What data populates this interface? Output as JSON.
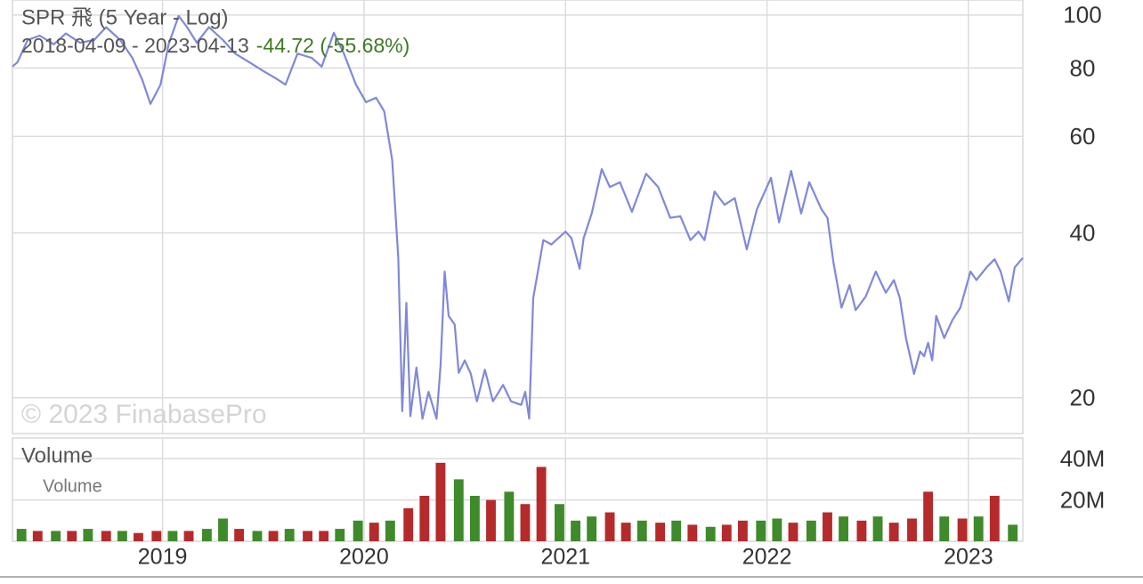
{
  "chart_data": [
    {
      "type": "line",
      "title": "SPR 飛 (5 Year - Log)",
      "subtitle": "2018-04-09 - 2023-04-13",
      "change": "-44.72 (-55.68%)",
      "watermark": "© 2023 FinabasePro",
      "log_scale": true,
      "grid": true,
      "xlim": [
        2018.255,
        2023.27
      ],
      "ylim": [
        17.2,
        106.5
      ],
      "yticks": [
        20,
        40,
        60,
        80,
        100
      ],
      "x": [
        2018.255,
        2018.28,
        2018.33,
        2018.39,
        2018.46,
        2018.52,
        2018.59,
        2018.66,
        2018.72,
        2018.79,
        2018.85,
        2018.9,
        2018.94,
        2018.99,
        2019.03,
        2019.08,
        2019.12,
        2019.17,
        2019.23,
        2019.3,
        2019.36,
        2019.43,
        2019.5,
        2019.56,
        2019.61,
        2019.67,
        2019.74,
        2019.79,
        2019.85,
        2019.9,
        2019.96,
        2020.01,
        2020.06,
        2020.1,
        2020.14,
        2020.17,
        2020.19,
        2020.21,
        2020.23,
        2020.26,
        2020.29,
        2020.32,
        2020.36,
        2020.38,
        2020.4,
        2020.42,
        2020.45,
        2020.47,
        2020.5,
        2020.53,
        2020.56,
        2020.6,
        2020.64,
        2020.69,
        2020.73,
        2020.78,
        2020.8,
        2020.82,
        2020.84,
        2020.89,
        2020.93,
        2021.0,
        2021.03,
        2021.07,
        2021.09,
        2021.13,
        2021.18,
        2021.22,
        2021.27,
        2021.33,
        2021.4,
        2021.46,
        2021.52,
        2021.57,
        2021.62,
        2021.66,
        2021.69,
        2021.74,
        2021.79,
        2021.84,
        2021.9,
        2021.95,
        2022.02,
        2022.06,
        2022.12,
        2022.17,
        2022.21,
        2022.27,
        2022.3,
        2022.33,
        2022.37,
        2022.41,
        2022.44,
        2022.49,
        2022.54,
        2022.59,
        2022.63,
        2022.66,
        2022.69,
        2022.73,
        2022.76,
        2022.78,
        2022.8,
        2022.82,
        2022.84,
        2022.88,
        2022.92,
        2022.96,
        2023.01,
        2023.04,
        2023.09,
        2023.13,
        2023.16,
        2023.2,
        2023.23,
        2023.27
      ],
      "series": [
        {
          "color": "#8088d8",
          "values": [
            80.5,
            82,
            90,
            91.7,
            88.4,
            92.5,
            89,
            90,
            95,
            90,
            83.5,
            76,
            68.8,
            74.6,
            88.4,
            99.6,
            95.2,
            89,
            95,
            90,
            85,
            82,
            79,
            76.7,
            74.6,
            85,
            83.5,
            80.5,
            92.8,
            85,
            74.6,
            69.3,
            70.6,
            66.7,
            54.3,
            36,
            18.9,
            29.8,
            18.5,
            22.7,
            18.3,
            20.5,
            18.3,
            22.9,
            34,
            28.2,
            27.2,
            22.2,
            23.4,
            22.1,
            19.7,
            22.5,
            19.7,
            21.1,
            19.7,
            19.4,
            20.5,
            18.3,
            30.4,
            38.8,
            38.1,
            40.2,
            39.1,
            34.4,
            39.1,
            43.4,
            52.3,
            48.5,
            49.5,
            43.7,
            51.3,
            48.5,
            42.6,
            42.9,
            38.8,
            40.2,
            38.8,
            47.6,
            45,
            46.3,
            37.3,
            44.2,
            50.4,
            41.8,
            51.9,
            43.4,
            49.5,
            44.2,
            42.6,
            35.3,
            29.2,
            32.1,
            28.9,
            30.6,
            34,
            31.1,
            32.8,
            30.4,
            25.7,
            22.1,
            24.3,
            23.8,
            25.2,
            23.4,
            28.2,
            25.7,
            27.7,
            29.2,
            34,
            32.8,
            34.6,
            35.8,
            34,
            30,
            34.6,
            36
          ]
        }
      ]
    },
    {
      "type": "bar",
      "title": "Volume",
      "grid": true,
      "xlim": [
        2018.255,
        2023.27
      ],
      "ylim": [
        0,
        50000000
      ],
      "xticks": [
        2019,
        2020,
        2021,
        2022,
        2023
      ],
      "yticks": [
        {
          "value": 20000000,
          "label": "20M"
        },
        {
          "value": 40000000,
          "label": "40M"
        }
      ],
      "x": [
        2018.3,
        2018.38,
        2018.47,
        2018.55,
        2018.63,
        2018.72,
        2018.8,
        2018.88,
        2018.97,
        2019.05,
        2019.13,
        2019.22,
        2019.3,
        2019.38,
        2019.47,
        2019.55,
        2019.63,
        2019.72,
        2019.8,
        2019.88,
        2019.97,
        2020.05,
        2020.13,
        2020.22,
        2020.3,
        2020.38,
        2020.47,
        2020.55,
        2020.63,
        2020.72,
        2020.8,
        2020.88,
        2020.97,
        2021.05,
        2021.13,
        2021.22,
        2021.3,
        2021.38,
        2021.47,
        2021.55,
        2021.63,
        2021.72,
        2021.8,
        2021.88,
        2021.97,
        2022.05,
        2022.13,
        2022.22,
        2022.3,
        2022.38,
        2022.47,
        2022.55,
        2022.63,
        2022.72,
        2022.8,
        2022.88,
        2022.97,
        2023.05,
        2023.13,
        2023.22
      ],
      "series": [
        {
          "name": "Volume",
          "values": [
            6000000,
            5000000,
            5000000,
            5000000,
            6000000,
            5000000,
            5000000,
            4000000,
            5000000,
            5000000,
            5000000,
            6000000,
            11000000,
            6000000,
            5000000,
            5000000,
            6000000,
            5000000,
            5000000,
            6000000,
            10000000,
            9000000,
            10000000,
            16000000,
            22000000,
            38000000,
            30000000,
            22000000,
            20000000,
            24000000,
            18000000,
            36000000,
            18000000,
            10000000,
            12000000,
            14000000,
            9000000,
            10000000,
            9000000,
            10000000,
            8000000,
            7000000,
            8000000,
            10000000,
            10000000,
            11000000,
            9000000,
            10000000,
            14000000,
            12000000,
            10000000,
            12000000,
            9000000,
            11000000,
            24000000,
            12000000,
            11000000,
            12000000,
            22000000,
            8000000
          ],
          "colors": [
            "#3f8a2a",
            "#b52a2a",
            "#3f8a2a",
            "#b52a2a",
            "#3f8a2a",
            "#b52a2a",
            "#3f8a2a",
            "#b52a2a",
            "#b52a2a",
            "#3f8a2a",
            "#b52a2a",
            "#3f8a2a",
            "#3f8a2a",
            "#b52a2a",
            "#3f8a2a",
            "#b52a2a",
            "#3f8a2a",
            "#b52a2a",
            "#b52a2a",
            "#3f8a2a",
            "#3f8a2a",
            "#b52a2a",
            "#3f8a2a",
            "#b52a2a",
            "#b52a2a",
            "#b52a2a",
            "#3f8a2a",
            "#3f8a2a",
            "#b52a2a",
            "#3f8a2a",
            "#b52a2a",
            "#b52a2a",
            "#3f8a2a",
            "#3f8a2a",
            "#3f8a2a",
            "#b52a2a",
            "#b52a2a",
            "#3f8a2a",
            "#b52a2a",
            "#3f8a2a",
            "#b52a2a",
            "#3f8a2a",
            "#b52a2a",
            "#b52a2a",
            "#3f8a2a",
            "#3f8a2a",
            "#b52a2a",
            "#3f8a2a",
            "#b52a2a",
            "#3f8a2a",
            "#b52a2a",
            "#3f8a2a",
            "#b52a2a",
            "#b52a2a",
            "#b52a2a",
            "#3f8a2a",
            "#b52a2a",
            "#3f8a2a",
            "#b52a2a",
            "#3f8a2a"
          ]
        }
      ]
    }
  ]
}
